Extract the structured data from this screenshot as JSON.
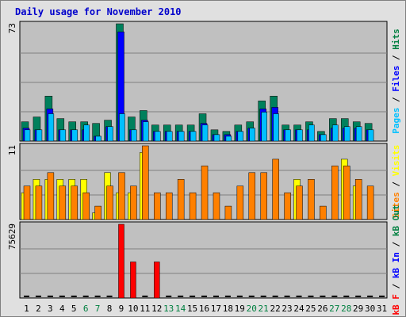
{
  "title": "Daily usage for November 2010",
  "colors": {
    "hits": "#00805c",
    "files": "#0000ff",
    "pages": "#00c0ff",
    "visits": "#ffff00",
    "sites": "#ff8000",
    "kbin": "#0000ff",
    "kbout": "#008040",
    "kbf": "#ff0000",
    "weekday": "#000000",
    "weekend": "#008040",
    "plot_bg": "#c0c0c0",
    "frame_bg": "#e0e0e0"
  },
  "chart_data": {
    "type": "bar",
    "x": [
      "1",
      "2",
      "3",
      "4",
      "5",
      "6",
      "7",
      "8",
      "9",
      "10",
      "11",
      "12",
      "13",
      "14",
      "15",
      "16",
      "17",
      "18",
      "19",
      "20",
      "21",
      "22",
      "23",
      "24",
      "25",
      "26",
      "27",
      "28",
      "29",
      "30",
      "31"
    ],
    "weekend_days": [
      "6",
      "7",
      "13",
      "14",
      "20",
      "21",
      "27",
      "28"
    ],
    "panels": [
      {
        "id": "hits",
        "max_label": "73",
        "ylim": [
          0,
          73
        ],
        "right_label": [
          {
            "text": "Pages",
            "color": "#00c0ff"
          },
          {
            "text": " / ",
            "color": "#000000"
          },
          {
            "text": "Files",
            "color": "#0000ff"
          },
          {
            "text": " / ",
            "color": "#000000"
          },
          {
            "text": "Hits",
            "color": "#008040"
          }
        ],
        "series": [
          {
            "name": "Hits",
            "color": "#00805c",
            "values": [
              12,
              15,
              28,
              14,
              12,
              12,
              11,
              13,
              73,
              15,
              19,
              10,
              10,
              10,
              10,
              17,
              7,
              6,
              10,
              12,
              25,
              28,
              10,
              10,
              12,
              6,
              14,
              14,
              12,
              11,
              0
            ]
          },
          {
            "name": "Files",
            "color": "#0000ff",
            "values": [
              8,
              7,
              20,
              7,
              7,
              7,
              3,
              9,
              68,
              7,
              13,
              6,
              6,
              6,
              6,
              11,
              4,
              4,
              6,
              8,
              20,
              21,
              7,
              7,
              7,
              4,
              8,
              8,
              8,
              7,
              0
            ]
          },
          {
            "name": "Pages",
            "color": "#00c0ff",
            "values": [
              7,
              7,
              17,
              7,
              7,
              10,
              3,
              9,
              17,
              7,
              12,
              6,
              6,
              6,
              6,
              10,
              4,
              3,
              6,
              8,
              18,
              17,
              7,
              7,
              10,
              4,
              10,
              9,
              9,
              7,
              0
            ]
          }
        ]
      },
      {
        "id": "visits",
        "max_label": "11",
        "ylim": [
          0,
          11
        ],
        "right_label": [
          {
            "text": "Sites",
            "color": "#ff8000"
          },
          {
            "text": " / ",
            "color": "#000000"
          },
          {
            "text": "Visits",
            "color": "#ffff00"
          }
        ],
        "series": [
          {
            "name": "Visits",
            "color": "#ffff00",
            "values": [
              4,
              6,
              6,
              6,
              6,
              6,
              1,
              7,
              4,
              4,
              10,
              0,
              0,
              0,
              0,
              0,
              0,
              0,
              0,
              0,
              0,
              0,
              0,
              6,
              0,
              0,
              0,
              9,
              5,
              0,
              0
            ]
          },
          {
            "name": "Sites",
            "color": "#ff8000",
            "values": [
              5,
              5,
              7,
              5,
              5,
              4,
              2,
              5,
              7,
              5,
              11,
              4,
              4,
              6,
              4,
              8,
              4,
              2,
              5,
              7,
              7,
              9,
              4,
              5,
              6,
              2,
              8,
              8,
              6,
              5,
              0
            ]
          }
        ]
      },
      {
        "id": "kbytes",
        "max_label": "75629",
        "ylim": [
          0,
          75629
        ],
        "right_label": [
          {
            "text": "kB F",
            "color": "#ff0000"
          },
          {
            "text": " / ",
            "color": "#000000"
          },
          {
            "text": "kB In",
            "color": "#0000ff"
          },
          {
            "text": " / ",
            "color": "#000000"
          },
          {
            "text": "kB Out",
            "color": "#008040"
          }
        ],
        "series": [
          {
            "name": "kB F",
            "color": "#ff0000",
            "values": [
              0,
              0,
              0,
              0,
              0,
              0,
              0,
              0,
              75629,
              37000,
              0,
              37000,
              0,
              0,
              0,
              0,
              0,
              0,
              0,
              0,
              0,
              0,
              0,
              0,
              0,
              0,
              0,
              0,
              0,
              0,
              0
            ]
          }
        ]
      }
    ]
  }
}
